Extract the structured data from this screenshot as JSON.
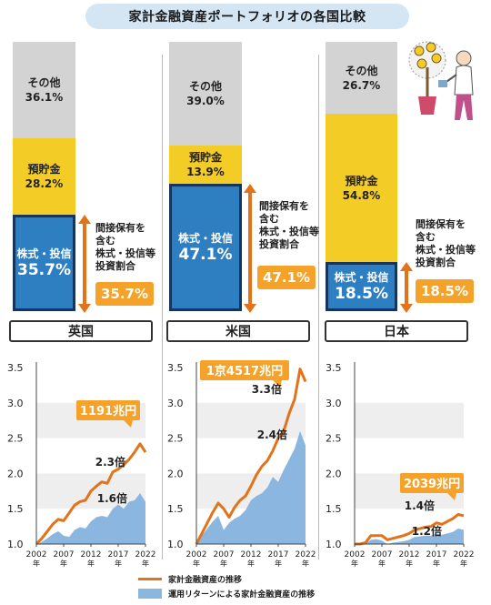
{
  "title": "家計金融資産ポートフォリオの各国比較",
  "countries": [
    {
      "name": "英国",
      "stack": {
        "other_label": "その他",
        "other_pct": "36.1%",
        "savings_label": "預貯金",
        "savings_pct": "28.2%",
        "stocks_label": "株式・投信",
        "stocks_pct": "35.7%"
      },
      "note": "間接保有を\n含む\n株式・投信等\n投資割合",
      "invest_pct": "35.7%",
      "chart": {
        "callout": "1191兆円",
        "line_multiple": "2.3倍",
        "area_multiple": "1.6倍"
      }
    },
    {
      "name": "米国",
      "stack": {
        "other_label": "その他",
        "other_pct": "39.0%",
        "savings_label": "預貯金",
        "savings_pct": "13.9%",
        "stocks_label": "株式・投信",
        "stocks_pct": "47.1%"
      },
      "note": "間接保有を\n含む\n株式・投信等\n投資割合",
      "invest_pct": "47.1%",
      "chart": {
        "callout": "1京4517兆円",
        "line_multiple": "3.3倍",
        "area_multiple": "2.4倍"
      }
    },
    {
      "name": "日本",
      "stack": {
        "other_label": "その他",
        "other_pct": "26.7%",
        "savings_label": "預貯金",
        "savings_pct": "54.8%",
        "stocks_label": "株式・投信",
        "stocks_pct": "18.5%"
      },
      "note": "間接保有を\n含む\n株式・投信等\n投資割合",
      "invest_pct": "18.5%",
      "chart": {
        "callout": "2039兆円",
        "line_multiple": "1.4倍",
        "area_multiple": "1.2倍"
      }
    }
  ],
  "legend": {
    "line_label": "家計金融資産の推移",
    "area_label": "運用リターンによる家計金融資産の推移"
  },
  "colors": {
    "line": "#e2731a",
    "area": "#8ab6df",
    "callout": "#f4a229",
    "stocks": "#2e7fc2",
    "savings": "#f4cc26",
    "other": "#d3d3d3"
  },
  "chart_data": [
    {
      "type": "bar",
      "stacked": true,
      "title": "家計金融資産ポートフォリオの各国比較",
      "categories": [
        "英国",
        "米国",
        "日本"
      ],
      "series": [
        {
          "name": "株式・投信",
          "values": [
            35.7,
            47.1,
            18.5
          ]
        },
        {
          "name": "預貯金",
          "values": [
            28.2,
            13.9,
            54.8
          ]
        },
        {
          "name": "その他",
          "values": [
            36.1,
            39.0,
            26.7
          ]
        }
      ],
      "unit": "%"
    },
    {
      "type": "line",
      "panel": "英国",
      "ylim": [
        1.0,
        3.5
      ],
      "yticks": [
        "1.0",
        "1.5",
        "2.0",
        "2.5",
        "3.0",
        "3.5"
      ],
      "xticks": [
        "2002",
        "2007",
        "2012",
        "2017",
        "2022"
      ],
      "x_suffix": "年",
      "series": [
        {
          "name": "家計金融資産の推移",
          "kind": "line",
          "x": [
            2002,
            2003,
            2004,
            2005,
            2006,
            2007,
            2008,
            2009,
            2010,
            2011,
            2012,
            2013,
            2014,
            2015,
            2016,
            2017,
            2018,
            2019,
            2020,
            2021,
            2022
          ],
          "y": [
            1.0,
            1.08,
            1.18,
            1.28,
            1.35,
            1.33,
            1.44,
            1.55,
            1.6,
            1.62,
            1.75,
            1.82,
            1.88,
            1.86,
            2.02,
            2.06,
            2.12,
            2.2,
            2.3,
            2.42,
            2.3
          ]
        },
        {
          "name": "運用リターンによる家計金融資産の推移",
          "kind": "area",
          "x": [
            2002,
            2003,
            2004,
            2005,
            2006,
            2007,
            2008,
            2009,
            2010,
            2011,
            2012,
            2013,
            2014,
            2015,
            2016,
            2017,
            2018,
            2019,
            2020,
            2021,
            2022
          ],
          "y": [
            1.0,
            1.03,
            1.08,
            1.14,
            1.18,
            1.12,
            1.1,
            1.2,
            1.24,
            1.22,
            1.32,
            1.38,
            1.4,
            1.38,
            1.5,
            1.56,
            1.5,
            1.6,
            1.62,
            1.72,
            1.6
          ]
        }
      ],
      "annotations": [
        "1191兆円",
        "2.3倍",
        "1.6倍"
      ]
    },
    {
      "type": "line",
      "panel": "米国",
      "ylim": [
        1.0,
        3.5
      ],
      "yticks": [
        "1.0",
        "1.5",
        "2.0",
        "2.5",
        "3.0",
        "3.5"
      ],
      "xticks": [
        "2002",
        "2007",
        "2012",
        "2017",
        "2022"
      ],
      "x_suffix": "年",
      "series": [
        {
          "name": "家計金融資産の推移",
          "kind": "line",
          "x": [
            2002,
            2003,
            2004,
            2005,
            2006,
            2007,
            2008,
            2009,
            2010,
            2011,
            2012,
            2013,
            2014,
            2015,
            2016,
            2017,
            2018,
            2019,
            2020,
            2021,
            2022
          ],
          "y": [
            1.0,
            1.15,
            1.3,
            1.45,
            1.58,
            1.5,
            1.38,
            1.52,
            1.62,
            1.68,
            1.82,
            1.98,
            2.1,
            2.18,
            2.32,
            2.5,
            2.6,
            2.85,
            3.05,
            3.48,
            3.3
          ]
        },
        {
          "name": "運用リターンによる家計金融資産の推移",
          "kind": "area",
          "x": [
            2002,
            2003,
            2004,
            2005,
            2006,
            2007,
            2008,
            2009,
            2010,
            2011,
            2012,
            2013,
            2014,
            2015,
            2016,
            2017,
            2018,
            2019,
            2020,
            2021,
            2022
          ],
          "y": [
            1.0,
            1.12,
            1.22,
            1.32,
            1.4,
            1.2,
            1.3,
            1.36,
            1.4,
            1.48,
            1.62,
            1.68,
            1.72,
            1.8,
            1.95,
            1.88,
            2.05,
            2.2,
            2.35,
            2.6,
            2.4
          ]
        }
      ],
      "annotations": [
        "1京4517兆円",
        "3.3倍",
        "2.4倍"
      ]
    },
    {
      "type": "line",
      "panel": "日本",
      "ylim": [
        1.0,
        3.5
      ],
      "yticks": [
        "1.0",
        "1.5",
        "2.0",
        "2.5",
        "3.0",
        "3.5"
      ],
      "xticks": [
        "2002",
        "2007",
        "2012",
        "2017",
        "2022"
      ],
      "x_suffix": "年",
      "series": [
        {
          "name": "家計金融資産の推移",
          "kind": "line",
          "x": [
            2002,
            2003,
            2004,
            2005,
            2006,
            2007,
            2008,
            2009,
            2010,
            2011,
            2012,
            2013,
            2014,
            2015,
            2016,
            2017,
            2018,
            2019,
            2020,
            2021,
            2022
          ],
          "y": [
            1.0,
            1.0,
            1.02,
            1.12,
            1.12,
            1.12,
            1.06,
            1.08,
            1.1,
            1.12,
            1.15,
            1.2,
            1.22,
            1.24,
            1.25,
            1.3,
            1.28,
            1.32,
            1.36,
            1.42,
            1.4
          ]
        },
        {
          "name": "運用リターンによる家計金融資産の推移",
          "kind": "area",
          "x": [
            2002,
            2003,
            2004,
            2005,
            2006,
            2007,
            2008,
            2009,
            2010,
            2011,
            2012,
            2013,
            2014,
            2015,
            2016,
            2017,
            2018,
            2019,
            2020,
            2021,
            2022
          ],
          "y": [
            1.0,
            1.0,
            1.01,
            1.06,
            1.07,
            1.05,
            1.0,
            1.02,
            1.03,
            1.04,
            1.06,
            1.1,
            1.11,
            1.12,
            1.12,
            1.15,
            1.13,
            1.15,
            1.17,
            1.22,
            1.2
          ]
        }
      ],
      "annotations": [
        "2039兆円",
        "1.4倍",
        "1.2倍"
      ]
    }
  ]
}
